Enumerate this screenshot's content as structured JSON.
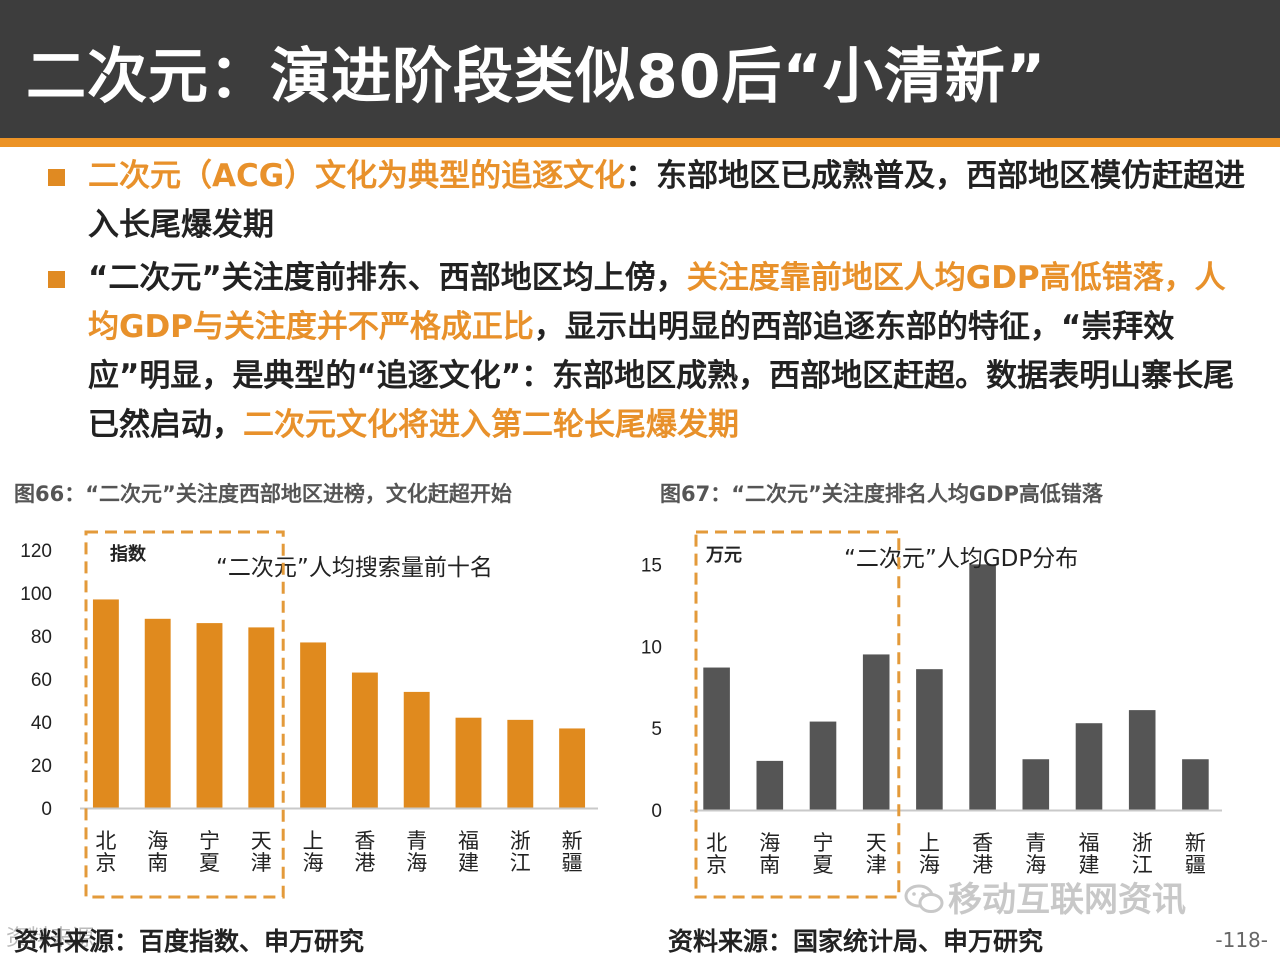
{
  "header": {
    "title": "二次元：演进阶段类似80后“小清新”"
  },
  "colors": {
    "accent": "#e08a22",
    "header_bg": "#3d3d3d",
    "bar_orange": "#e08a1e",
    "bar_gray": "#555555"
  },
  "bullets": [
    {
      "hl1": "二次元（ACG）文化为典型的追逐文化",
      "rest": "：东部地区已成熟普及，西部地区模仿赶超进入长尾爆发期"
    },
    {
      "pre": "“二次元”关注度前排东、西部地区均上傍，",
      "hl1": "关注度靠前地区人均GDP高低错落，人均GDP与关注度并不严格成正比",
      "mid": "，显示出明显的西部追逐东部的特征，“崇拜效应”明显，是典型的“追逐文化”：东部地区成熟，西部地区赶超。数据表明山寨长尾已然启动，",
      "hl2": "二次元文化将进入第二轮长尾爆发期"
    }
  ],
  "figures": {
    "left": {
      "caption": "图66：“二次元”关注度西部地区进榜，文化赶超开始",
      "source": "资料来源：百度指数、申万研究"
    },
    "right": {
      "caption": "图67：“二次元”关注度排名人均GDP高低错落",
      "source": "资料来源：国家统计局、申万研究"
    }
  },
  "watermark": "移动互联网资讯",
  "watermark_bottom_left": "资料来源",
  "page_number": "-118-",
  "chart_data": [
    {
      "type": "bar",
      "title": "“二次元”人均搜索量前十名",
      "unit_label": "指数",
      "categories": [
        "北京",
        "海南",
        "宁夏",
        "天津",
        "上海",
        "香港",
        "青海",
        "福建",
        "浙江",
        "新疆"
      ],
      "values": [
        97,
        88,
        86,
        84,
        77,
        63,
        54,
        42,
        41,
        37
      ],
      "ylim": [
        0,
        120
      ],
      "yticks": [
        0,
        20,
        40,
        60,
        80,
        100,
        120
      ],
      "highlight_first_n": 4,
      "color": "#e08a1e"
    },
    {
      "type": "bar",
      "title": "“二次元”人均GDP分布",
      "unit_label": "万元",
      "categories": [
        "北京",
        "海南",
        "宁夏",
        "天津",
        "上海",
        "香港",
        "青海",
        "福建",
        "浙江",
        "新疆"
      ],
      "values": [
        8.7,
        3.0,
        5.4,
        9.5,
        8.6,
        15.0,
        3.1,
        5.3,
        6.1,
        3.1
      ],
      "ylim": [
        0,
        16
      ],
      "yticks": [
        0,
        5,
        10,
        15
      ],
      "highlight_first_n": 4,
      "color": "#555555"
    }
  ]
}
